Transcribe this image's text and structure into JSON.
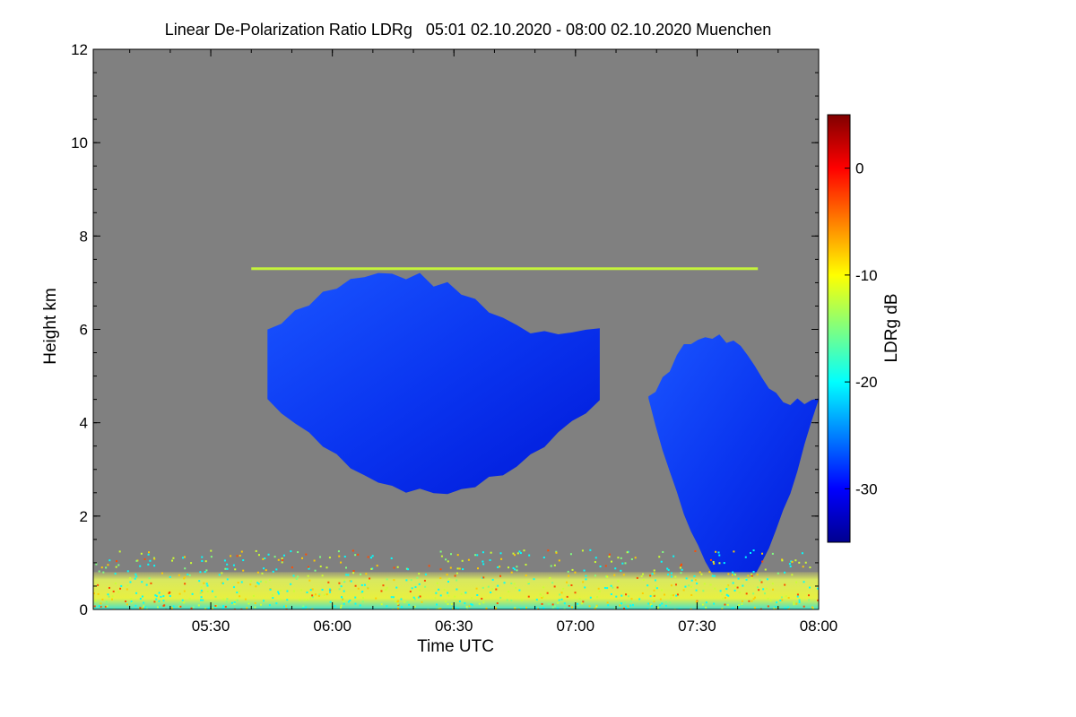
{
  "chart_data": {
    "type": "heatmap",
    "title": "Linear De-Polarization Ratio LDRg   05:01 02.10.2020 - 08:00 02.10.2020 Muenchen",
    "xlabel": "Time UTC",
    "ylabel": "Height km",
    "xlim": [
      "05:01",
      "08:00"
    ],
    "ylim": [
      0,
      12
    ],
    "x_ticks": [
      "05:30",
      "06:00",
      "06:30",
      "07:00",
      "07:30",
      "08:00"
    ],
    "y_ticks": [
      "0",
      "2",
      "4",
      "6",
      "8",
      "10",
      "12"
    ],
    "colorbar": {
      "label": "LDRg dB",
      "range": [
        -35,
        5
      ],
      "ticks": [
        "0",
        "-10",
        "-20",
        "-30"
      ],
      "colormap": "jet"
    },
    "background_color": "#808080",
    "grid": false,
    "features": [
      {
        "type": "cloud",
        "start": "05:44",
        "end": "07:06",
        "base_km": [
          2.5,
          4.5
        ],
        "top_km": [
          6.0,
          7.3
        ],
        "ldr_db": -30
      },
      {
        "type": "cloud",
        "start": "07:18",
        "end": "08:00",
        "base_km": [
          0.5,
          4.5
        ],
        "top_km": [
          4.5,
          6.0
        ],
        "ldr_db": -31
      },
      {
        "type": "layer",
        "start": "05:40",
        "end": "07:45",
        "height_km": 7.3,
        "ldr_db": -12
      },
      {
        "type": "boundary-layer",
        "start": "05:01",
        "end": "08:00",
        "base_km": 0,
        "top_km": 0.8,
        "ldr_db": -12
      }
    ]
  }
}
